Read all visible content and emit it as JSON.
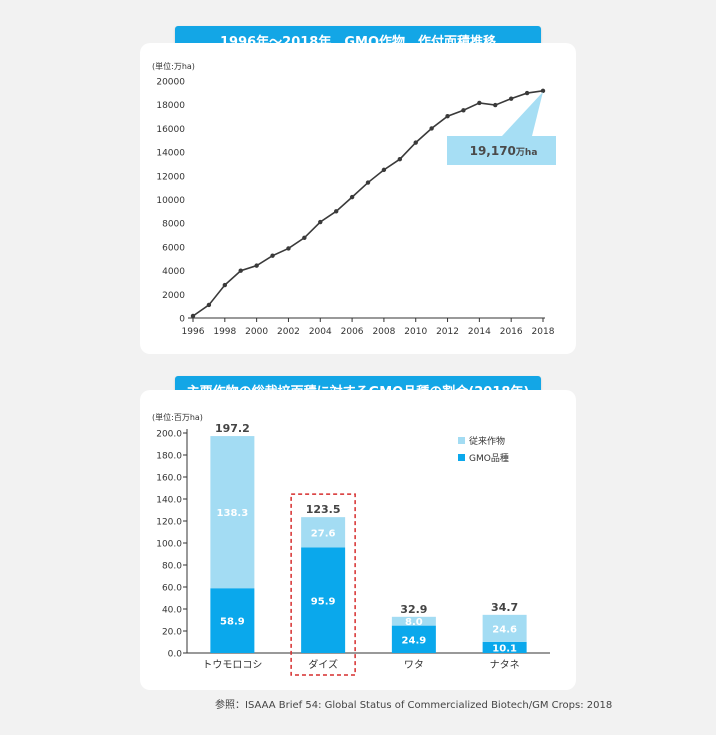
{
  "chart_data": [
    {
      "type": "line",
      "title": "1996年〜2018年　GMO作物　作付面積推移",
      "unit_label": "(単位:万ha)",
      "x": [
        1996,
        1997,
        1998,
        1999,
        2000,
        2001,
        2002,
        2003,
        2004,
        2005,
        2006,
        2007,
        2008,
        2009,
        2010,
        2011,
        2012,
        2013,
        2014,
        2015,
        2016,
        2017,
        2018
      ],
      "values": [
        170,
        1100,
        2780,
        3990,
        4420,
        5260,
        5870,
        6770,
        8100,
        9000,
        10200,
        11430,
        12500,
        13400,
        14800,
        16000,
        17030,
        17530,
        18150,
        17970,
        18510,
        18980,
        19170
      ],
      "x_tick_labels": [
        "1996",
        "1998",
        "2000",
        "2002",
        "2004",
        "2006",
        "2008",
        "2010",
        "2012",
        "2014",
        "2016",
        "2018"
      ],
      "y_tick_labels": [
        "0",
        "2000",
        "4000",
        "6000",
        "8000",
        "10000",
        "12000",
        "14000",
        "16000",
        "18000",
        "20000"
      ],
      "ylim": [
        0,
        20000
      ],
      "xlim": [
        1996,
        2018
      ],
      "callout": {
        "value": "19,170",
        "unit": "万ha"
      },
      "colors": {
        "line": "#3a3a3a",
        "callout": "#a6def4"
      }
    },
    {
      "type": "bar",
      "stacked": true,
      "title": "主要作物の総栽培面積に対するGMO品種の割合(2018年)",
      "unit_label": "(単位:百万ha)",
      "categories": [
        "トウモロコシ",
        "ダイズ",
        "ワタ",
        "ナタネ"
      ],
      "series": [
        {
          "name": "GMO品種",
          "values": [
            58.9,
            95.9,
            24.9,
            10.1
          ],
          "labels": [
            "58.9",
            "95.9",
            "24.9",
            "10.1"
          ],
          "color": "#0aa8ec"
        },
        {
          "name": "従来作物",
          "values": [
            138.3,
            27.6,
            8.0,
            24.6
          ],
          "labels": [
            "138.3",
            "27.6",
            "8.0",
            "24.6"
          ],
          "color": "#a3dcf3"
        }
      ],
      "totals": [
        "197.2",
        "123.5",
        "32.9",
        "34.7"
      ],
      "y_tick_labels": [
        "0.0",
        "20.0",
        "40.0",
        "60.0",
        "80.0",
        "100.0",
        "120.0",
        "140.0",
        "160.0",
        "180.0",
        "200.0"
      ],
      "ylim": [
        0,
        200
      ],
      "highlight_category": "ダイズ",
      "legend_position": "top-right"
    }
  ],
  "source": "参照：ISAAA Brief 54: Global Status of Commercialized Biotech/GM Crops: 2018"
}
